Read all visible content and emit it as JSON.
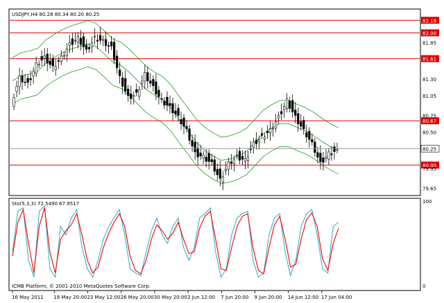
{
  "chart_data": [
    {
      "type": "candlestick",
      "header": "USDJPY,H4  80.28 80.34 80.20 80.25",
      "symbol": "USDJPY",
      "timeframe": "H4",
      "ohlc_last": {
        "open": 80.28,
        "high": 80.34,
        "low": 80.2,
        "close": 80.25
      },
      "last_price": 80.25,
      "ylim": [
        79.55,
        82.35
      ],
      "y_ticks": [
        "82.19",
        "82.00",
        "81.85",
        "81.61",
        "81.30",
        "81.05",
        "80.75",
        "80.67",
        "80.50",
        "80.25",
        "80.00",
        "79.95",
        "79.65"
      ],
      "horizontal_levels": [
        82.19,
        82.0,
        81.61,
        80.67,
        80.0
      ],
      "level_color": "#e00000",
      "candle_color": "#000000",
      "band_color": "#1e9e1e",
      "close_path": [
        {
          "x": "16 May 2011",
          "close": 80.95
        },
        {
          "x": "",
          "close": 81.35
        },
        {
          "x": "",
          "close": 81.25
        },
        {
          "x": "",
          "close": 81.55
        },
        {
          "x": "",
          "close": 81.65
        },
        {
          "x": "18 May 20:00",
          "close": 81.5
        },
        {
          "x": "",
          "close": 81.65
        },
        {
          "x": "",
          "close": 81.85
        },
        {
          "x": "",
          "close": 81.95
        },
        {
          "x": "23 May 12:00",
          "close": 81.75
        },
        {
          "x": "",
          "close": 81.95
        },
        {
          "x": "",
          "close": 81.9
        },
        {
          "x": "",
          "close": 81.8
        },
        {
          "x": "26 May 20:00",
          "close": 81.35
        },
        {
          "x": "",
          "close": 81.05
        },
        {
          "x": "",
          "close": 81.1
        },
        {
          "x": "",
          "close": 81.4
        },
        {
          "x": "30 May 20:00",
          "close": 81.2
        },
        {
          "x": "",
          "close": 81.0
        },
        {
          "x": "",
          "close": 80.9
        },
        {
          "x": "",
          "close": 80.75
        },
        {
          "x": "2 Jun 12:00",
          "close": 80.55
        },
        {
          "x": "",
          "close": 80.2
        },
        {
          "x": "",
          "close": 80.15
        },
        {
          "x": "",
          "close": 80.05
        },
        {
          "x": "7 Jun 20:00",
          "close": 79.8
        },
        {
          "x": "",
          "close": 80.05
        },
        {
          "x": "",
          "close": 80.15
        },
        {
          "x": "",
          "close": 80.1
        },
        {
          "x": "9 Jun 20:00",
          "close": 80.35
        },
        {
          "x": "",
          "close": 80.45
        },
        {
          "x": "",
          "close": 80.55
        },
        {
          "x": "",
          "close": 80.75
        },
        {
          "x": "14 Jun 12:00",
          "close": 81.0
        },
        {
          "x": "",
          "close": 80.75
        },
        {
          "x": "",
          "close": 80.55
        },
        {
          "x": "",
          "close": 80.35
        },
        {
          "x": "17 Jun 04:00",
          "close": 80.05
        },
        {
          "x": "",
          "close": 80.2
        },
        {
          "x": "",
          "close": 80.25
        }
      ],
      "x_ticks": [
        "16 May 2011",
        "18 May 20:00",
        "23 May 12:00",
        "26 May 20:00",
        "30 May 20:00",
        "2 Jun 12:00",
        "7 Jun 20:00",
        "9 Jun 20:00",
        "14 Jun 12:00",
        "17 Jun 04:00"
      ],
      "footer": "ICMB Platform, © 2001-2010 MetaQuotes Software Corp."
    },
    {
      "type": "line",
      "header": "Sto(5,3,3) 72.5490 67.9517",
      "ylim": [
        0,
        100
      ],
      "y_ticks": [
        "100",
        "0"
      ],
      "series": [
        {
          "name": "",
          "color": "#33b5c7",
          "values": [
            40,
            88,
            92,
            30,
            10,
            88,
            94,
            20,
            10,
            70,
            60,
            80,
            90,
            45,
            20,
            10,
            30,
            55,
            70,
            80,
            90,
            60,
            20,
            15,
            12,
            40,
            65,
            80,
            60,
            50,
            70,
            80,
            45,
            30,
            45,
            80,
            85,
            92,
            40,
            10,
            20,
            60,
            80,
            85,
            88,
            30,
            10,
            15,
            60,
            80,
            85,
            40,
            12,
            30,
            70,
            85,
            90,
            60,
            20,
            15,
            70,
            75
          ]
        },
        {
          "name": "",
          "color": "#ff0000",
          "values": [
            35,
            75,
            90,
            50,
            15,
            70,
            92,
            40,
            15,
            55,
            65,
            72,
            85,
            60,
            30,
            15,
            22,
            45,
            62,
            75,
            85,
            70,
            35,
            18,
            14,
            30,
            55,
            72,
            65,
            55,
            62,
            75,
            55,
            38,
            40,
            68,
            82,
            88,
            55,
            20,
            18,
            45,
            70,
            82,
            85,
            45,
            18,
            14,
            45,
            72,
            82,
            55,
            22,
            25,
            55,
            78,
            86,
            70,
            32,
            18,
            50,
            68
          ]
        }
      ]
    }
  ]
}
